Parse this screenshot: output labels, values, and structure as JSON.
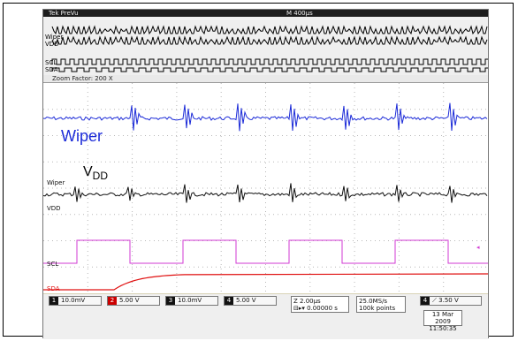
{
  "header": {
    "title": "Tek PreVu",
    "timebase": "M 400µs"
  },
  "overview": {
    "label_wiper": "Wiper",
    "label_vdd": "VDD",
    "label_scl": "SCL",
    "label_sda": "SDA"
  },
  "zoom": {
    "label": "Zoom Factor: 200 X"
  },
  "traces": {
    "wiper_text": "Wiper",
    "vdd_text_main": "V",
    "vdd_text_sub": "DD",
    "ch_wiper": "Wiper",
    "ch_vdd": "VDD",
    "ch_scl": "SCL",
    "ch_sda": "SDA"
  },
  "channels": [
    {
      "num": "1",
      "value": "10.0mV"
    },
    {
      "num": "2",
      "value": "5.00 V"
    },
    {
      "num": "3",
      "value": "10.0mV"
    },
    {
      "num": "4",
      "value": "5.00 V"
    }
  ],
  "timing": {
    "line1": "Z 2.00µs",
    "line2": "⊟▸▾ 0.00000 s"
  },
  "sampling": {
    "line1": "25.0MS/s",
    "line2": "100k points"
  },
  "trigger": {
    "value": "3.50 V"
  },
  "timestamp": {
    "date": "13 Mar 2009",
    "time": "11:50:35"
  },
  "colors": {
    "wiper": "#1c2bd8",
    "vdd": "#111111",
    "scl": "#d23ad3",
    "sda": "#e01010",
    "grid": "#b7b7b7"
  }
}
